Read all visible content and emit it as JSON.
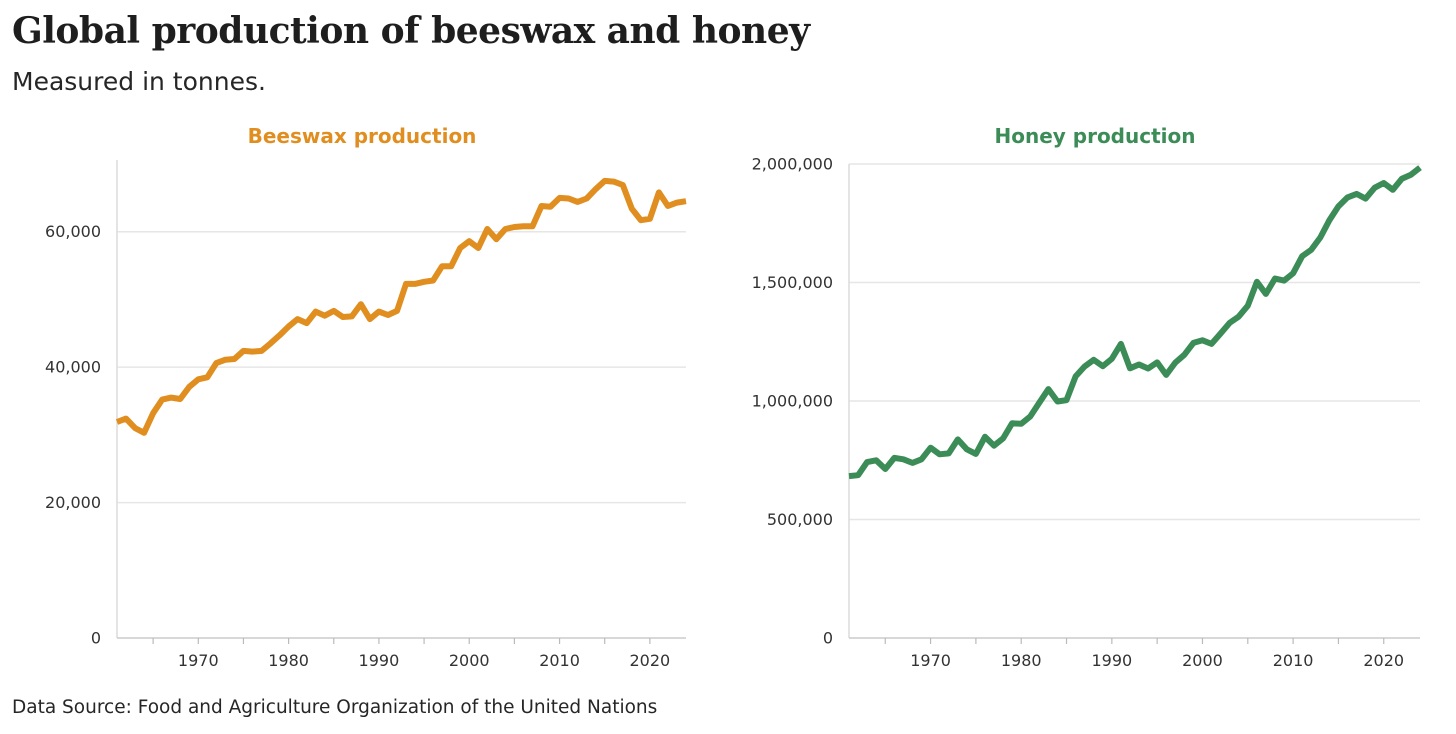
{
  "header": {
    "title": "Global production of beeswax and honey",
    "subtitle": "Measured in tonnes."
  },
  "footer": {
    "source": "Data Source: Food and Agriculture Organization of the United Nations"
  },
  "chart_data": [
    {
      "type": "line",
      "title": "Beeswax production",
      "color": "#e08e1f",
      "xlabel": "",
      "ylabel": "",
      "xlim": [
        1961,
        2024
      ],
      "ylim": [
        0,
        70000
      ],
      "x_ticks": [
        1970,
        1980,
        1990,
        2000,
        2010,
        2020
      ],
      "x_tick_labels": [
        "1970",
        "1980",
        "1990",
        "2000",
        "2010",
        "2020"
      ],
      "y_ticks": [
        0,
        20000,
        40000,
        60000
      ],
      "y_tick_labels": [
        "0",
        "20,000",
        "40,000",
        "60,000"
      ],
      "grid": true,
      "series": [
        {
          "name": "Beeswax production",
          "x": [
            1961,
            1962,
            1963,
            1964,
            1965,
            1966,
            1967,
            1968,
            1969,
            1970,
            1971,
            1972,
            1973,
            1974,
            1975,
            1976,
            1977,
            1978,
            1979,
            1980,
            1981,
            1982,
            1983,
            1984,
            1985,
            1986,
            1987,
            1988,
            1989,
            1990,
            1991,
            1992,
            1993,
            1994,
            1995,
            1996,
            1997,
            1998,
            1999,
            2000,
            2001,
            2002,
            2003,
            2004,
            2005,
            2006,
            2007,
            2008,
            2009,
            2010,
            2011,
            2012,
            2013,
            2014,
            2015,
            2016,
            2017,
            2018,
            2019,
            2020,
            2021,
            2022,
            2023,
            2024
          ],
          "values": [
            31900,
            32400,
            31000,
            30300,
            33200,
            35200,
            35500,
            35300,
            37100,
            38200,
            38500,
            40600,
            41100,
            41200,
            42400,
            42300,
            42400,
            43500,
            44700,
            46000,
            47100,
            46500,
            48200,
            47600,
            48300,
            47400,
            47500,
            49300,
            47100,
            48200,
            47700,
            48300,
            52300,
            52300,
            52600,
            52800,
            54900,
            54900,
            57600,
            58600,
            57600,
            60400,
            58900,
            60400,
            60700,
            60800,
            60800,
            63800,
            63700,
            65000,
            64900,
            64400,
            64900,
            66300,
            67500,
            67400,
            66900,
            63400,
            61700,
            61900,
            65800,
            63800,
            64300,
            64500
          ]
        }
      ]
    },
    {
      "type": "line",
      "title": "Honey production",
      "color": "#3b8c56",
      "xlabel": "",
      "ylabel": "",
      "xlim": [
        1961,
        2024
      ],
      "ylim": [
        0,
        2000000
      ],
      "x_ticks": [
        1970,
        1980,
        1990,
        2000,
        2010,
        2020
      ],
      "x_tick_labels": [
        "1970",
        "1980",
        "1990",
        "2000",
        "2010",
        "2020"
      ],
      "y_ticks": [
        0,
        500000,
        1000000,
        1500000,
        2000000
      ],
      "y_tick_labels": [
        "0",
        "500,000",
        "1,000,000",
        "1,500,000",
        "2,000,000"
      ],
      "grid": true,
      "series": [
        {
          "name": "Honey production",
          "x": [
            1961,
            1962,
            1963,
            1964,
            1965,
            1966,
            1967,
            1968,
            1969,
            1970,
            1971,
            1972,
            1973,
            1974,
            1975,
            1976,
            1977,
            1978,
            1979,
            1980,
            1981,
            1982,
            1983,
            1984,
            1985,
            1986,
            1987,
            1988,
            1989,
            1990,
            1991,
            1992,
            1993,
            1994,
            1995,
            1996,
            1997,
            1998,
            1999,
            2000,
            2001,
            2002,
            2003,
            2004,
            2005,
            2006,
            2007,
            2008,
            2009,
            2010,
            2011,
            2012,
            2013,
            2014,
            2015,
            2016,
            2017,
            2018,
            2019,
            2020,
            2021,
            2022,
            2023,
            2024
          ],
          "values": [
            683000,
            687000,
            742000,
            750000,
            713000,
            760000,
            754000,
            739000,
            754000,
            803000,
            775000,
            779000,
            838000,
            796000,
            777000,
            849000,
            812000,
            842000,
            906000,
            904000,
            935000,
            993000,
            1050000,
            998000,
            1004000,
            1104000,
            1146000,
            1174000,
            1147000,
            1178000,
            1241000,
            1138000,
            1154000,
            1137000,
            1163000,
            1110000,
            1162000,
            1195000,
            1245000,
            1256000,
            1241000,
            1285000,
            1330000,
            1356000,
            1402000,
            1503000,
            1452000,
            1517000,
            1508000,
            1539000,
            1611000,
            1638000,
            1690000,
            1763000,
            1821000,
            1859000,
            1874000,
            1854000,
            1900000,
            1920000,
            1891000,
            1938000,
            1955000,
            1985000
          ]
        }
      ]
    }
  ]
}
